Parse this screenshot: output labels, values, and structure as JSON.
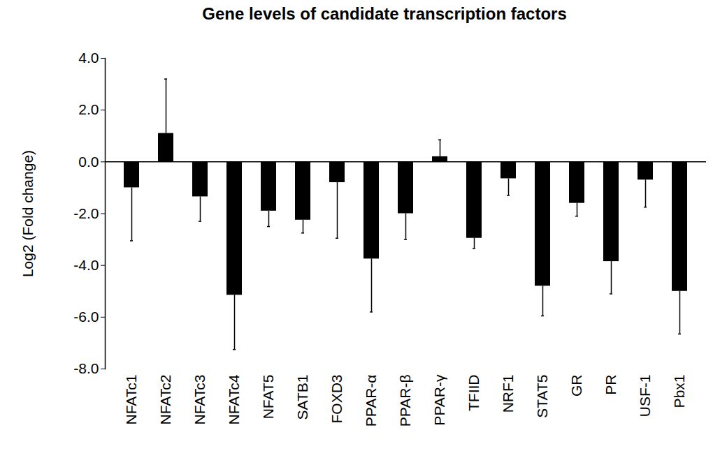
{
  "chart_data": {
    "type": "bar",
    "title": "Gene levels of candidate transcription factors",
    "y_label": "Log2 (Fold change)",
    "categories": [
      "NFATc1",
      "NFATc2",
      "NFATc3",
      "NFATc4",
      "NFAT5",
      "SATB1",
      "FOXD3",
      "PPAR-α",
      "PPAR-β",
      "PPAR-γ",
      "TFIID",
      "NRF1",
      "STAT5",
      "GR",
      "PR",
      "USF-1",
      "Pbx1"
    ],
    "values": [
      -1.0,
      1.1,
      -1.35,
      -5.15,
      -1.9,
      -2.25,
      -0.8,
      -3.75,
      -2.0,
      0.2,
      -2.95,
      -0.65,
      -4.8,
      -1.6,
      -3.85,
      -0.7,
      -5.0
    ],
    "errors": [
      2.05,
      2.1,
      0.95,
      2.1,
      0.6,
      0.5,
      2.15,
      2.05,
      1.0,
      0.65,
      0.4,
      0.65,
      1.15,
      0.5,
      1.25,
      1.05,
      1.65
    ],
    "color": "#000000",
    "ylim": [
      -8,
      4
    ],
    "yticks": [
      {
        "value": -8,
        "label": "-8.0"
      },
      {
        "value": -6,
        "label": "-6.0"
      },
      {
        "value": -4,
        "label": "-4.0"
      },
      {
        "value": -2,
        "label": "-2.0"
      },
      {
        "value": 0,
        "label": "0.0"
      },
      {
        "value": 2,
        "label": "2.0"
      },
      {
        "value": 4,
        "label": "4.0"
      }
    ],
    "grid": false
  }
}
